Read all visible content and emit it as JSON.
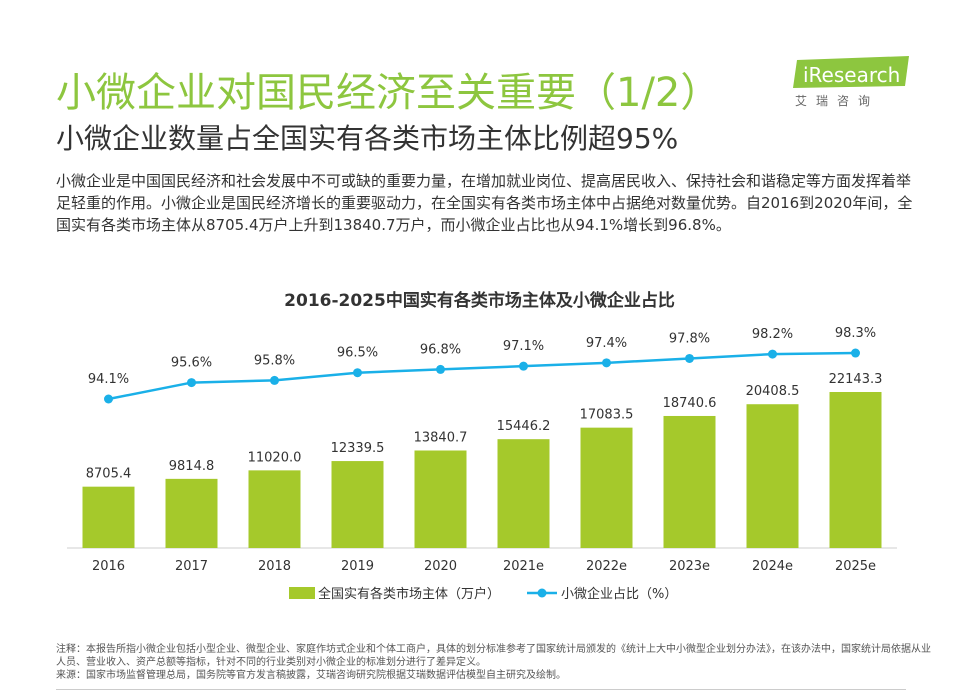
{
  "header": {
    "title": "小微企业对国民经济至关重要（1/2）",
    "subtitle": "小微企业数量占全国实有各类市场主体比例超95%"
  },
  "logo": {
    "brand": "iResearch",
    "cn": "艾瑞咨询",
    "color": "#8dc63f"
  },
  "description": "小微企业是中国国民经济和社会发展中不可或缺的重要力量，在增加就业岗位、提高居民收入、保持社会和谐稳定等方面发挥着举足轻重的作用。小微企业是国民经济增长的重要驱动力，在全国实有各类市场主体中占据绝对数量优势。自2016到2020年间，全国实有各类市场主体从8705.4万户上升到13840.7万户，而小微企业占比也从94.1%增长到96.8%。",
  "chart_data": {
    "type": "bar+line",
    "title": "2016-2025中国实有各类市场主体及小微企业占比",
    "categories": [
      "2016",
      "2017",
      "2018",
      "2019",
      "2020",
      "2021e",
      "2022e",
      "2023e",
      "2024e",
      "2025e"
    ],
    "series": [
      {
        "name": "全国实有各类市场主体（万户）",
        "type": "bar",
        "color": "#a5c92b",
        "values": [
          8705.4,
          9814.8,
          11020.0,
          12339.5,
          13840.7,
          15446.2,
          17083.5,
          18740.6,
          20408.5,
          22143.3
        ],
        "labels": [
          "8705.4",
          "9814.8",
          "11020.0",
          "12339.5",
          "13840.7",
          "15446.2",
          "17083.5",
          "18740.6",
          "20408.5",
          "22143.3"
        ]
      },
      {
        "name": "小微企业占比（%）",
        "type": "line",
        "color": "#1ab0e8",
        "values": [
          94.1,
          95.6,
          95.8,
          96.5,
          96.8,
          97.1,
          97.4,
          97.8,
          98.2,
          98.3
        ],
        "labels": [
          "94.1%",
          "95.6%",
          "95.8%",
          "96.5%",
          "96.8%",
          "97.1%",
          "97.4%",
          "97.8%",
          "98.2%",
          "98.3%"
        ]
      }
    ],
    "legend_position": "bottom",
    "grid": false
  },
  "footnote": {
    "note": "注释：本报告所指小微企业包括小型企业、微型企业、家庭作坊式企业和个体工商户，具体的划分标准参考了国家统计局颁发的《统计上大中小微型企业划分办法》，在该办法中，国家统计局依据从业人员、营业收入、资产总额等指标，针对不同的行业类别对小微企业的标准划分进行了差异定义。",
    "source": "来源：国家市场监督管理总局，国务院等官方发言稿披露，艾瑞咨询研究院根据艾瑞数据评估模型自主研究及绘制。"
  }
}
